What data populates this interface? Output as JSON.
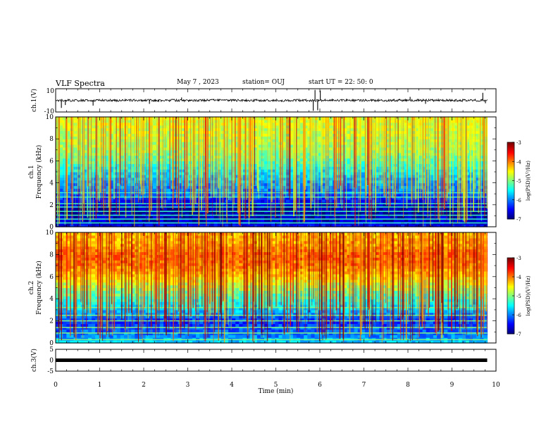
{
  "header": {
    "title": "VLF Spectra",
    "date": "May 7 , 2023",
    "station": "station= OUJ",
    "start": "start  UT =   22: 50: 0"
  },
  "chart_data": [
    {
      "type": "line",
      "panel": "waveform-ch1",
      "ylabel": "ch.1(V)",
      "ylim": [
        -10,
        10
      ],
      "yticks": [
        "10",
        "-10"
      ],
      "xlim": [
        0,
        10
      ],
      "data_end_min": 9.8,
      "baseline": 0,
      "noise_amplitude": 1,
      "spikes": [
        {
          "t": 0.13,
          "v": -6.5
        },
        {
          "t": 0.22,
          "v": -4
        },
        {
          "t": 0.85,
          "v": -4.5
        },
        {
          "t": 2.13,
          "v": -3
        },
        {
          "t": 2.86,
          "v": 2.5
        },
        {
          "t": 5.85,
          "v": -9
        },
        {
          "t": 5.89,
          "v": 9
        },
        {
          "t": 5.95,
          "v": -8.5
        },
        {
          "t": 6.01,
          "v": 8.5
        },
        {
          "t": 8.05,
          "v": 3
        },
        {
          "t": 8.4,
          "v": -3
        },
        {
          "t": 9.7,
          "v": 6.5
        },
        {
          "t": 9.76,
          "v": -2.5
        }
      ]
    },
    {
      "type": "heatmap",
      "panel": "spectrogram-ch1",
      "ylabel": "ch.1",
      "ylabel2": "Frequency (kHz)",
      "xlim": [
        0,
        10
      ],
      "ylim": [
        0,
        10
      ],
      "yticks": [
        "0",
        "2",
        "4",
        "6",
        "8",
        "10"
      ],
      "data_end_min": 9.8,
      "colorbar": {
        "label": "log(PSD)(V²/Hz)",
        "range": [
          -7,
          -3
        ],
        "ticks": [
          "-3",
          "-4",
          "-5",
          "-6",
          "-7"
        ]
      },
      "profile_khz": [
        0,
        0.5,
        1,
        1.5,
        2,
        2.5,
        3,
        4,
        5,
        6,
        7,
        8,
        9,
        10
      ],
      "profile_logpsd": [
        -6.5,
        -6.7,
        -6.8,
        -6.9,
        -6.7,
        -6.4,
        -6.1,
        -5.9,
        -5.6,
        -5.2,
        -4.9,
        -4.8,
        -4.7,
        -4.6
      ],
      "bands_khz": [
        0.35,
        0.7,
        1.05,
        1.4,
        1.8,
        2.1,
        2.7,
        3.1
      ],
      "bands_logpsd": -5.3,
      "stripe_count": 420
    },
    {
      "type": "heatmap",
      "panel": "spectrogram-ch2",
      "ylabel": "ch.2",
      "ylabel2": "Frequency (kHz)",
      "xlim": [
        0,
        10
      ],
      "ylim": [
        0,
        10
      ],
      "yticks": [
        "0",
        "2",
        "4",
        "6",
        "8",
        "10"
      ],
      "data_end_min": 9.8,
      "colorbar": {
        "label": "log(PSD)(V²/Hz)",
        "range": [
          -7,
          -3
        ],
        "ticks": [
          "-3",
          "-4",
          "-5",
          "-6",
          "-7"
        ]
      },
      "profile_khz": [
        0,
        0.5,
        1,
        1.5,
        2,
        2.5,
        3,
        4,
        5,
        6,
        7,
        8,
        9,
        10
      ],
      "profile_logpsd": [
        -5.6,
        -5.9,
        -6.1,
        -6.2,
        -6.3,
        -6.0,
        -5.7,
        -5.3,
        -4.9,
        -4.4,
        -4.0,
        -3.9,
        -4.2,
        -4.3
      ],
      "bands_khz": [
        0.3,
        0.9,
        1.4,
        2.0,
        2.5,
        3.2
      ],
      "bands_logpsd": -5.0,
      "stripe_count": 420
    },
    {
      "type": "line",
      "panel": "waveform-ch3",
      "ylabel": "ch.3(V)",
      "ylim": [
        -5,
        5
      ],
      "yticks": [
        "5",
        "0",
        "-5"
      ],
      "xlim": [
        0,
        10
      ],
      "xlabel": "Time (min)",
      "xticks": [
        "0",
        "1",
        "2",
        "3",
        "4",
        "5",
        "6",
        "7",
        "8",
        "9",
        "10"
      ],
      "data_end_min": 9.8,
      "constant_value": 0
    }
  ]
}
